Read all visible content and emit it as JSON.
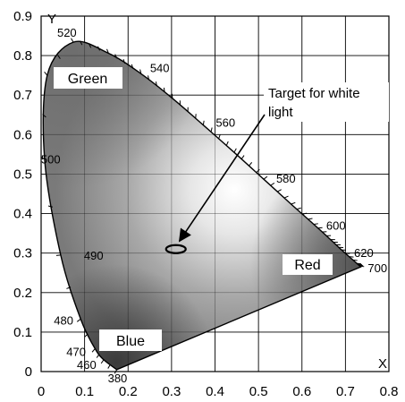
{
  "chart_data": {
    "type": "diagram",
    "xlabel": "X",
    "ylabel": "Y",
    "xlim": [
      0,
      0.8
    ],
    "ylim": [
      0,
      0.9
    ],
    "grid": true,
    "x_ticks": [
      "0",
      "0.1",
      "0.2",
      "0.3",
      "0.4",
      "0.5",
      "0.6",
      "0.7",
      "0.8"
    ],
    "y_ticks": [
      "0",
      "0.1",
      "0.2",
      "0.3",
      "0.4",
      "0.5",
      "0.6",
      "0.7",
      "0.8",
      "0.9"
    ],
    "locus": [
      {
        "nm": 380,
        "x": 0.174,
        "y": 0.005
      },
      {
        "nm": 460,
        "x": 0.144,
        "y": 0.03
      },
      {
        "nm": 470,
        "x": 0.124,
        "y": 0.058
      },
      {
        "nm": 480,
        "x": 0.091,
        "y": 0.133
      },
      {
        "nm": 490,
        "x": 0.045,
        "y": 0.295
      },
      {
        "nm": 500,
        "x": 0.008,
        "y": 0.538
      },
      {
        "nm": 510,
        "x": 0.014,
        "y": 0.75
      },
      {
        "nm": 520,
        "x": 0.074,
        "y": 0.834
      },
      {
        "nm": 530,
        "x": 0.155,
        "y": 0.806
      },
      {
        "nm": 540,
        "x": 0.23,
        "y": 0.754
      },
      {
        "nm": 550,
        "x": 0.302,
        "y": 0.692
      },
      {
        "nm": 560,
        "x": 0.373,
        "y": 0.624
      },
      {
        "nm": 570,
        "x": 0.444,
        "y": 0.555
      },
      {
        "nm": 580,
        "x": 0.512,
        "y": 0.487
      },
      {
        "nm": 590,
        "x": 0.575,
        "y": 0.424
      },
      {
        "nm": 600,
        "x": 0.627,
        "y": 0.373
      },
      {
        "nm": 610,
        "x": 0.666,
        "y": 0.334
      },
      {
        "nm": 620,
        "x": 0.691,
        "y": 0.308
      },
      {
        "nm": 650,
        "x": 0.726,
        "y": 0.274
      },
      {
        "nm": 700,
        "x": 0.735,
        "y": 0.265
      }
    ],
    "wavelength_labels": [
      {
        "text": "520",
        "nm": 520
      },
      {
        "text": "540",
        "nm": 540
      },
      {
        "text": "560",
        "nm": 560
      },
      {
        "text": "580",
        "nm": 580
      },
      {
        "text": "600",
        "nm": 600
      },
      {
        "text": "620",
        "nm": 620
      },
      {
        "text": "700",
        "nm": 700
      },
      {
        "text": "500",
        "nm": 500
      },
      {
        "text": "490",
        "nm": 490
      },
      {
        "text": "480",
        "nm": 480
      },
      {
        "text": "470",
        "nm": 470
      },
      {
        "text": "460",
        "nm": 460
      },
      {
        "text": "380",
        "nm": 380
      }
    ],
    "regions": [
      "Green",
      "Blue",
      "Red"
    ],
    "white_target": {
      "x": 0.31,
      "y": 0.31
    },
    "annotation": {
      "line1": "Target for white",
      "line2": "light"
    }
  }
}
